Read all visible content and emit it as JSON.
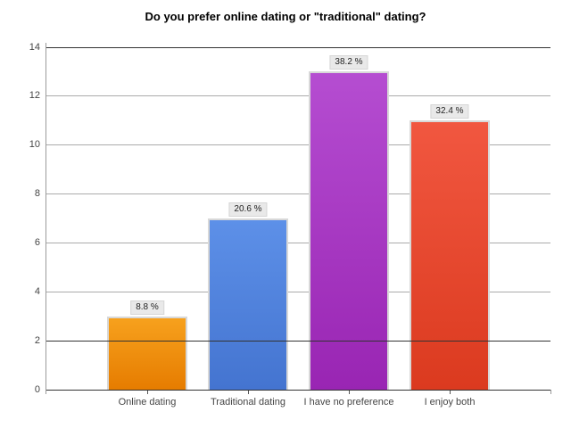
{
  "chart_data": {
    "type": "bar",
    "title": "Do you prefer online dating or \"traditional\" dating?",
    "categories": [
      "Online dating",
      "Traditional dating",
      "I have no preference",
      "I enjoy both"
    ],
    "values": [
      3,
      7,
      13,
      11
    ],
    "value_labels": [
      "8.8 %",
      "20.6 %",
      "38.2 %",
      "32.4 %"
    ],
    "bar_colors": [
      {
        "top": "#f7a11d",
        "bottom": "#e67c00"
      },
      {
        "top": "#5d90e8",
        "bottom": "#4474d0"
      },
      {
        "top": "#b54dd1",
        "bottom": "#9925b3"
      },
      {
        "top": "#f15740",
        "bottom": "#db3a1f"
      }
    ],
    "xlabel": "",
    "ylabel": "",
    "ylim": [
      0,
      14
    ],
    "ytick_interval": 2,
    "ytick_labels": [
      "0",
      "2",
      "4",
      "6",
      "8",
      "10",
      "12",
      "14"
    ],
    "grid": "on",
    "legend": "none",
    "dark_gridline_values": [
      0,
      2,
      14
    ],
    "colors": {
      "background": "#ffffff",
      "gridline": "#ababab",
      "gridline_dark": "#333333",
      "axis_line": "#9a9a9a",
      "axis_text": "#444444",
      "value_label_bg": "#e9e9e9",
      "value_label_border": "#d6d6d6",
      "bar_border": "#d8d8d8"
    }
  }
}
